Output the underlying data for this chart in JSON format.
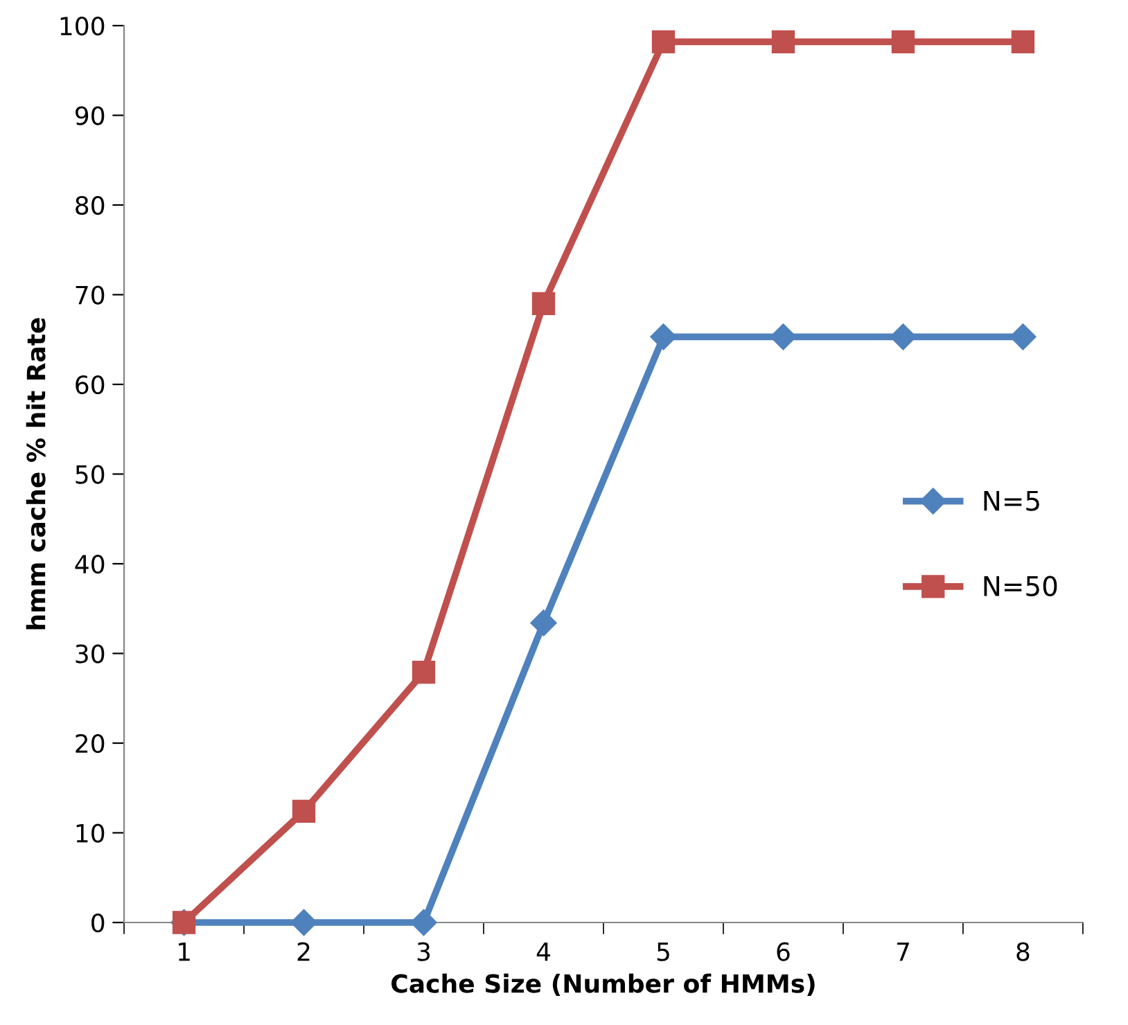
{
  "chart_data": {
    "type": "line",
    "xlabel": "Cache Size (Number of HMMs)",
    "ylabel": "hmm cache % hit Rate",
    "categories": [
      "1",
      "2",
      "3",
      "4",
      "5",
      "6",
      "7",
      "8"
    ],
    "series": [
      {
        "name": "N=5",
        "color": "#4f81bd",
        "marker": "diamond",
        "values": [
          0,
          0,
          0,
          33.4,
          65.3,
          65.3,
          65.3,
          65.3
        ]
      },
      {
        "name": "N=50",
        "color": "#c0504d",
        "marker": "square",
        "values": [
          0,
          12.4,
          27.9,
          69.0,
          98.2,
          98.2,
          98.2,
          98.2
        ]
      }
    ],
    "ylim": [
      0,
      100
    ],
    "yticks": [
      0,
      10,
      20,
      30,
      40,
      50,
      60,
      70,
      80,
      90,
      100
    ],
    "grid": false,
    "legend": "right",
    "line_style": "solid"
  }
}
